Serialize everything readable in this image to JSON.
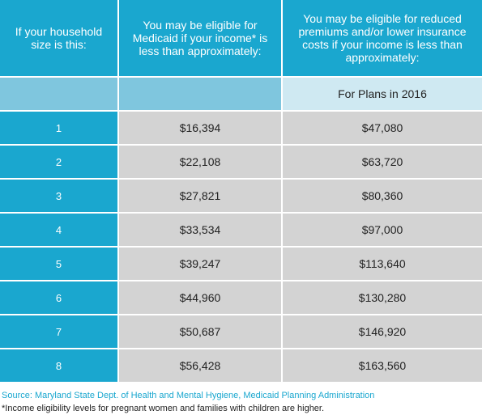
{
  "header": {
    "col1": "If your household size is this:",
    "col2": "You may be eligible for Medicaid if your income* is less than approximately:",
    "col3": "You may be eligible for reduced premiums and/or lower insurance costs if your income is less than approximately:"
  },
  "subheader": {
    "col1": "",
    "col2": "",
    "col3": "For Plans in 2016"
  },
  "rows": [
    {
      "size": "1",
      "medicaid": "$16,394",
      "reduced": "$47,080"
    },
    {
      "size": "2",
      "medicaid": "$22,108",
      "reduced": "$63,720"
    },
    {
      "size": "3",
      "medicaid": "$27,821",
      "reduced": "$80,360"
    },
    {
      "size": "4",
      "medicaid": "$33,534",
      "reduced": "$97,000"
    },
    {
      "size": "5",
      "medicaid": "$39,247",
      "reduced": "$113,640"
    },
    {
      "size": "6",
      "medicaid": "$44,960",
      "reduced": "$130,280"
    },
    {
      "size": "7",
      "medicaid": "$50,687",
      "reduced": "$146,920"
    },
    {
      "size": "8",
      "medicaid": "$56,428",
      "reduced": "$163,560"
    }
  ],
  "footer": {
    "source": "Source: Maryland State Dept. of Health and Mental Hygiene, Medicaid Planning Administration",
    "note": "*Income eligibility levels for pregnant women and families with children are higher."
  },
  "colors": {
    "header_blue": "#1aa7cf",
    "subheader_blue": "#7fc6de",
    "subheader_light": "#cfe9f2",
    "cell_gray": "#d3d3d3"
  }
}
